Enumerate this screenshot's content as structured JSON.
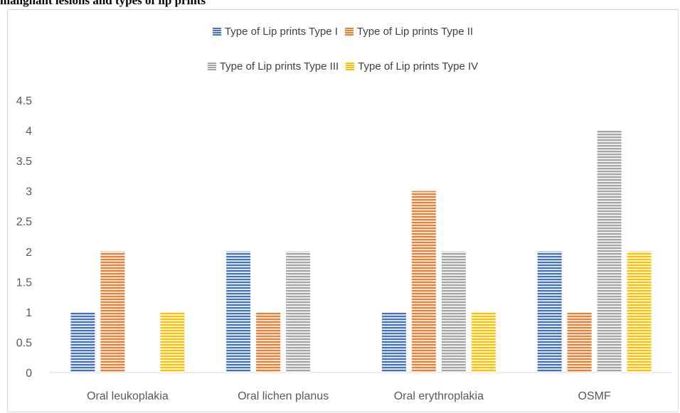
{
  "caption": "malignant lesions and types of lip prints",
  "chart_data": {
    "type": "bar",
    "title": "",
    "xlabel": "",
    "ylabel": "",
    "categories": [
      "Oral leukoplakia",
      "Oral lichen planus",
      "Oral erythroplakia",
      "OSMF"
    ],
    "series": [
      {
        "name": "Type of Lip prints Type I",
        "color": "#4472c4",
        "values": [
          1,
          2,
          1,
          2
        ]
      },
      {
        "name": "Type of Lip prints Type II",
        "color": "#ed7d31",
        "values": [
          2,
          1,
          3,
          1
        ]
      },
      {
        "name": "Type of Lip prints Type III",
        "color": "#a5a5a5",
        "values": [
          0,
          2,
          2,
          4
        ]
      },
      {
        "name": "Type of Lip prints Type IV",
        "color": "#ffc000",
        "values": [
          1,
          0,
          1,
          2
        ]
      }
    ],
    "ylim": [
      0,
      4.5
    ],
    "yticks": [
      "0",
      "0.5",
      "1",
      "1.5",
      "2",
      "2.5",
      "3",
      "3.5",
      "4",
      "4.5"
    ],
    "grid": false,
    "legend_position": "top",
    "bar_pattern": "horizontal-stripes"
  }
}
